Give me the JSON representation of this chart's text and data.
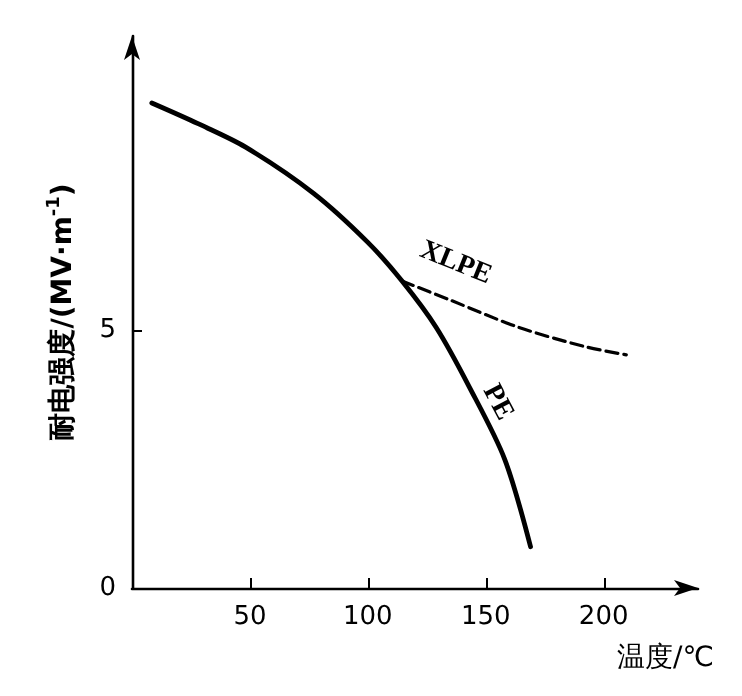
{
  "chart_data": {
    "type": "line",
    "xlabel": "温度/℃",
    "ylabel": "耐电强度/(MV·m$^{-1}$)",
    "xlim": [
      0,
      240
    ],
    "xticks": [
      50,
      100,
      150,
      200
    ],
    "ylim": [
      0,
      10.7
    ],
    "yticks": [
      0,
      5
    ],
    "grid": false,
    "legend": false,
    "marker": "none",
    "series": [
      {
        "name": "PE",
        "color": "#000000",
        "line_style": "solid",
        "x": [
          8.4,
          28,
          48,
          77,
          100,
          114.5,
          129,
          143,
          158,
          169
        ],
        "values": [
          9.4,
          9.0,
          8.55,
          7.65,
          6.7,
          5.95,
          5.05,
          3.9,
          2.5,
          0.8
        ]
      },
      {
        "name": "XLPE",
        "color": "#000000",
        "line_style": "dashed",
        "x": [
          114.5,
          135,
          163.5,
          192,
          209.6
        ],
        "values": [
          5.95,
          5.58,
          5.06,
          4.68,
          4.52
        ]
      }
    ]
  }
}
